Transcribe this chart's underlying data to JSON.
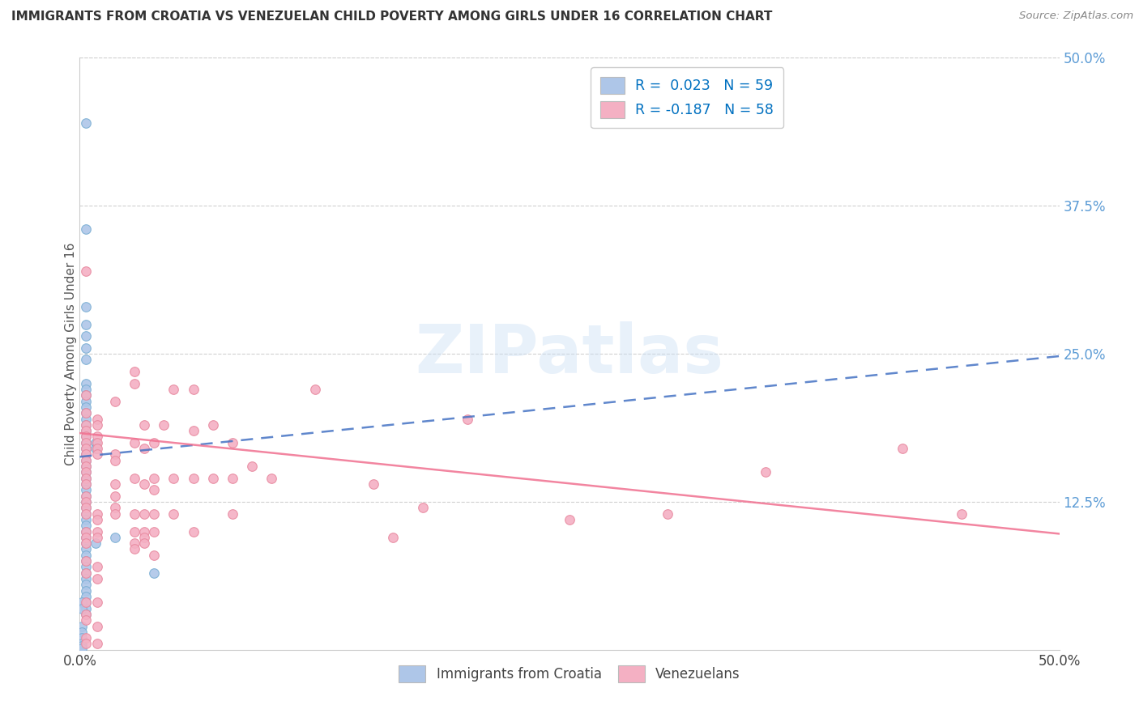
{
  "title": "IMMIGRANTS FROM CROATIA VS VENEZUELAN CHILD POVERTY AMONG GIRLS UNDER 16 CORRELATION CHART",
  "source": "Source: ZipAtlas.com",
  "ylabel": "Child Poverty Among Girls Under 16",
  "xlim": [
    0.0,
    0.5
  ],
  "ylim": [
    0.0,
    0.5
  ],
  "right_ytick_labels": [
    "12.5%",
    "25.0%",
    "37.5%",
    "50.0%"
  ],
  "right_ytick_values": [
    0.125,
    0.25,
    0.375,
    0.5
  ],
  "croatia_color": "#aec6e8",
  "croatia_edge_color": "#7bafd4",
  "venezuela_color": "#f4b0c3",
  "venezuela_edge_color": "#e88aa0",
  "croatia_line_color": "#4472c4",
  "venezuela_line_color": "#f07090",
  "watermark": "ZIPatlas",
  "croatia_line_x0": 0.0,
  "croatia_line_y0": 0.163,
  "croatia_line_x1": 0.5,
  "croatia_line_y1": 0.248,
  "venezuela_line_x0": 0.0,
  "venezuela_line_y0": 0.183,
  "venezuela_line_x1": 0.5,
  "venezuela_line_y1": 0.098,
  "croatia_scatter": [
    [
      0.003,
      0.445
    ],
    [
      0.003,
      0.355
    ],
    [
      0.003,
      0.29
    ],
    [
      0.003,
      0.275
    ],
    [
      0.003,
      0.265
    ],
    [
      0.003,
      0.255
    ],
    [
      0.003,
      0.245
    ],
    [
      0.003,
      0.225
    ],
    [
      0.003,
      0.22
    ],
    [
      0.003,
      0.215
    ],
    [
      0.003,
      0.21
    ],
    [
      0.003,
      0.205
    ],
    [
      0.003,
      0.2
    ],
    [
      0.003,
      0.195
    ],
    [
      0.003,
      0.19
    ],
    [
      0.003,
      0.185
    ],
    [
      0.003,
      0.18
    ],
    [
      0.003,
      0.175
    ],
    [
      0.003,
      0.17
    ],
    [
      0.003,
      0.165
    ],
    [
      0.003,
      0.16
    ],
    [
      0.003,
      0.155
    ],
    [
      0.003,
      0.15
    ],
    [
      0.003,
      0.145
    ],
    [
      0.003,
      0.14
    ],
    [
      0.003,
      0.135
    ],
    [
      0.003,
      0.13
    ],
    [
      0.003,
      0.125
    ],
    [
      0.003,
      0.12
    ],
    [
      0.003,
      0.115
    ],
    [
      0.003,
      0.11
    ],
    [
      0.003,
      0.105
    ],
    [
      0.003,
      0.1
    ],
    [
      0.003,
      0.095
    ],
    [
      0.003,
      0.09
    ],
    [
      0.003,
      0.085
    ],
    [
      0.003,
      0.08
    ],
    [
      0.003,
      0.075
    ],
    [
      0.003,
      0.07
    ],
    [
      0.003,
      0.065
    ],
    [
      0.003,
      0.06
    ],
    [
      0.003,
      0.055
    ],
    [
      0.003,
      0.05
    ],
    [
      0.003,
      0.045
    ],
    [
      0.003,
      0.04
    ],
    [
      0.003,
      0.035
    ],
    [
      0.003,
      0.03
    ],
    [
      0.008,
      0.175
    ],
    [
      0.008,
      0.17
    ],
    [
      0.008,
      0.09
    ],
    [
      0.018,
      0.095
    ],
    [
      0.038,
      0.065
    ],
    [
      0.001,
      0.04
    ],
    [
      0.001,
      0.035
    ],
    [
      0.001,
      0.02
    ],
    [
      0.001,
      0.015
    ],
    [
      0.001,
      0.01
    ],
    [
      0.001,
      0.005
    ],
    [
      0.001,
      0.003
    ],
    [
      0.001,
      0.001
    ]
  ],
  "venezuela_scatter": [
    [
      0.003,
      0.32
    ],
    [
      0.003,
      0.215
    ],
    [
      0.003,
      0.2
    ],
    [
      0.003,
      0.19
    ],
    [
      0.003,
      0.185
    ],
    [
      0.003,
      0.18
    ],
    [
      0.003,
      0.175
    ],
    [
      0.003,
      0.17
    ],
    [
      0.003,
      0.165
    ],
    [
      0.003,
      0.16
    ],
    [
      0.003,
      0.155
    ],
    [
      0.003,
      0.15
    ],
    [
      0.003,
      0.145
    ],
    [
      0.003,
      0.14
    ],
    [
      0.003,
      0.13
    ],
    [
      0.003,
      0.125
    ],
    [
      0.003,
      0.12
    ],
    [
      0.003,
      0.115
    ],
    [
      0.003,
      0.1
    ],
    [
      0.003,
      0.095
    ],
    [
      0.003,
      0.09
    ],
    [
      0.003,
      0.075
    ],
    [
      0.003,
      0.065
    ],
    [
      0.003,
      0.04
    ],
    [
      0.003,
      0.03
    ],
    [
      0.003,
      0.025
    ],
    [
      0.003,
      0.01
    ],
    [
      0.003,
      0.005
    ],
    [
      0.009,
      0.195
    ],
    [
      0.009,
      0.19
    ],
    [
      0.009,
      0.18
    ],
    [
      0.009,
      0.175
    ],
    [
      0.009,
      0.17
    ],
    [
      0.009,
      0.165
    ],
    [
      0.009,
      0.115
    ],
    [
      0.009,
      0.11
    ],
    [
      0.009,
      0.1
    ],
    [
      0.009,
      0.095
    ],
    [
      0.009,
      0.07
    ],
    [
      0.009,
      0.06
    ],
    [
      0.009,
      0.04
    ],
    [
      0.009,
      0.02
    ],
    [
      0.009,
      0.005
    ],
    [
      0.018,
      0.21
    ],
    [
      0.018,
      0.165
    ],
    [
      0.018,
      0.16
    ],
    [
      0.018,
      0.14
    ],
    [
      0.018,
      0.13
    ],
    [
      0.018,
      0.12
    ],
    [
      0.018,
      0.115
    ],
    [
      0.028,
      0.235
    ],
    [
      0.028,
      0.225
    ],
    [
      0.028,
      0.175
    ],
    [
      0.028,
      0.145
    ],
    [
      0.028,
      0.115
    ],
    [
      0.028,
      0.1
    ],
    [
      0.028,
      0.09
    ],
    [
      0.028,
      0.085
    ],
    [
      0.033,
      0.19
    ],
    [
      0.033,
      0.17
    ],
    [
      0.033,
      0.14
    ],
    [
      0.033,
      0.115
    ],
    [
      0.033,
      0.1
    ],
    [
      0.033,
      0.095
    ],
    [
      0.033,
      0.09
    ],
    [
      0.038,
      0.175
    ],
    [
      0.038,
      0.145
    ],
    [
      0.038,
      0.135
    ],
    [
      0.038,
      0.115
    ],
    [
      0.038,
      0.1
    ],
    [
      0.038,
      0.08
    ],
    [
      0.043,
      0.19
    ],
    [
      0.048,
      0.22
    ],
    [
      0.048,
      0.145
    ],
    [
      0.048,
      0.115
    ],
    [
      0.058,
      0.22
    ],
    [
      0.058,
      0.185
    ],
    [
      0.058,
      0.145
    ],
    [
      0.058,
      0.1
    ],
    [
      0.068,
      0.19
    ],
    [
      0.068,
      0.145
    ],
    [
      0.078,
      0.175
    ],
    [
      0.078,
      0.145
    ],
    [
      0.078,
      0.115
    ],
    [
      0.088,
      0.155
    ],
    [
      0.098,
      0.145
    ],
    [
      0.12,
      0.22
    ],
    [
      0.15,
      0.14
    ],
    [
      0.16,
      0.095
    ],
    [
      0.175,
      0.12
    ],
    [
      0.198,
      0.195
    ],
    [
      0.25,
      0.11
    ],
    [
      0.3,
      0.115
    ],
    [
      0.35,
      0.15
    ],
    [
      0.42,
      0.17
    ],
    [
      0.45,
      0.115
    ]
  ]
}
